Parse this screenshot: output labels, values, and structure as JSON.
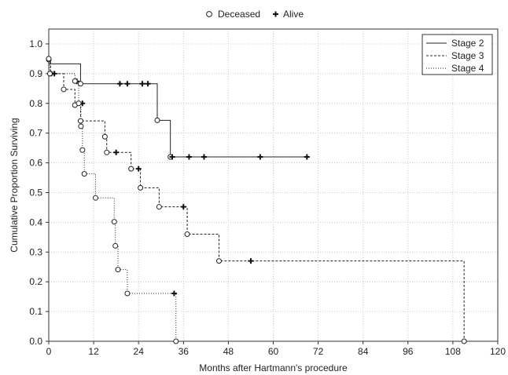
{
  "chart_data": {
    "type": "line",
    "title": "",
    "xlabel": "Months after Hartmann's procedure",
    "ylabel": "Cumulative Proportion Surviving",
    "xlim": [
      0,
      120
    ],
    "ylim": [
      0,
      1.05
    ],
    "x_ticks": [
      0,
      12,
      24,
      36,
      48,
      60,
      72,
      84,
      96,
      108,
      120
    ],
    "y_ticks": [
      0.0,
      0.1,
      0.2,
      0.3,
      0.4,
      0.5,
      0.6,
      0.7,
      0.8,
      0.9,
      1.0
    ],
    "x_tick_labels": [
      "0",
      "12",
      "24",
      "36",
      "48",
      "60",
      "72",
      "84",
      "96",
      "108",
      "120"
    ],
    "y_tick_labels": [
      "0.0",
      "0.1",
      "0.2",
      "0.3",
      "0.4",
      "0.5",
      "0.6",
      "0.7",
      "0.8",
      "0.9",
      "1.0"
    ],
    "grid": true,
    "marker_legend": {
      "placement": "top-center",
      "items": [
        {
          "symbol": "circle",
          "label": "Deceased"
        },
        {
          "symbol": "plus",
          "label": "Alive"
        }
      ]
    },
    "legend": {
      "placement": "top-right"
    },
    "series": [
      {
        "name": "Stage 2",
        "line_style": "solid",
        "steps": [
          [
            0,
            0.933
          ],
          [
            8.5,
            0.866
          ],
          [
            29,
            0.743
          ],
          [
            32.5,
            0.62
          ],
          [
            69,
            0.62
          ]
        ],
        "deceased": [
          [
            8.5,
            0.866
          ],
          [
            29,
            0.743
          ],
          [
            32.5,
            0.62
          ]
        ],
        "alive": [
          [
            19,
            0.866
          ],
          [
            21,
            0.866
          ],
          [
            25,
            0.866
          ],
          [
            26.5,
            0.866
          ],
          [
            33,
            0.62
          ],
          [
            37.5,
            0.62
          ],
          [
            41.5,
            0.62
          ],
          [
            56.5,
            0.62
          ],
          [
            69,
            0.62
          ]
        ]
      },
      {
        "name": "Stage 3",
        "line_style": "dashed",
        "steps": [
          [
            0,
            0.947
          ],
          [
            0.5,
            0.9
          ],
          [
            4,
            0.847
          ],
          [
            7,
            0.794
          ],
          [
            8.5,
            0.741
          ],
          [
            15,
            0.688
          ],
          [
            15.5,
            0.635
          ],
          [
            22,
            0.58
          ],
          [
            24.5,
            0.516
          ],
          [
            29.5,
            0.452
          ],
          [
            37,
            0.36
          ],
          [
            45.5,
            0.27
          ],
          [
            111,
            0.27
          ],
          [
            111,
            0.0
          ]
        ],
        "deceased": [
          [
            0,
            0.947
          ],
          [
            0.5,
            0.9
          ],
          [
            4,
            0.847
          ],
          [
            7,
            0.794
          ],
          [
            8.5,
            0.741
          ],
          [
            15,
            0.688
          ],
          [
            15.5,
            0.635
          ],
          [
            22,
            0.58
          ],
          [
            24.5,
            0.516
          ],
          [
            29.5,
            0.452
          ],
          [
            37,
            0.36
          ],
          [
            45.5,
            0.27
          ],
          [
            111,
            0.0
          ]
        ],
        "alive": [
          [
            1.5,
            0.9
          ],
          [
            7.5,
            0.874
          ],
          [
            9,
            0.8
          ],
          [
            18,
            0.635
          ],
          [
            24,
            0.58
          ],
          [
            36,
            0.452
          ],
          [
            54,
            0.27
          ]
        ]
      },
      {
        "name": "Stage 4",
        "line_style": "dotted",
        "steps": [
          [
            0,
            0.95
          ],
          [
            0.3,
            0.9
          ],
          [
            7,
            0.875
          ],
          [
            8,
            0.8
          ],
          [
            8.6,
            0.723
          ],
          [
            9,
            0.643
          ],
          [
            9.5,
            0.563
          ],
          [
            12.5,
            0.482
          ],
          [
            17.5,
            0.402
          ],
          [
            17.8,
            0.321
          ],
          [
            18.5,
            0.241
          ],
          [
            21,
            0.161
          ],
          [
            34,
            0.161
          ],
          [
            34,
            0.0
          ]
        ],
        "deceased": [
          [
            0,
            0.95
          ],
          [
            0.3,
            0.9
          ],
          [
            7,
            0.875
          ],
          [
            8,
            0.8
          ],
          [
            8.6,
            0.723
          ],
          [
            9,
            0.643
          ],
          [
            9.5,
            0.563
          ],
          [
            12.5,
            0.482
          ],
          [
            17.5,
            0.402
          ],
          [
            17.8,
            0.321
          ],
          [
            18.5,
            0.241
          ],
          [
            21,
            0.161
          ],
          [
            34,
            0.0
          ]
        ],
        "alive": [
          [
            33.5,
            0.161
          ]
        ]
      }
    ]
  }
}
